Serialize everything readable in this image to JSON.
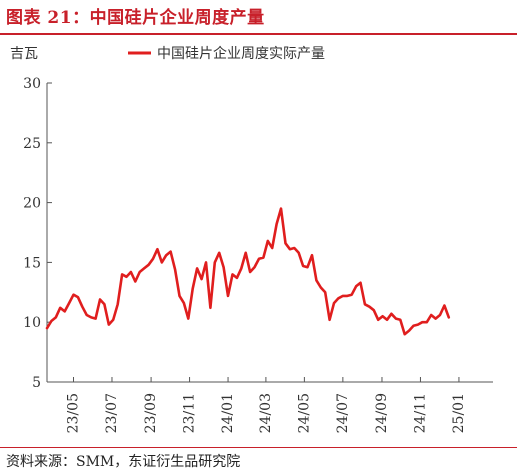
{
  "figure": {
    "title": "图表 21：中国硅片企业周度产量",
    "source": "资料来源：SMM，东证衍生品研究院"
  },
  "colors": {
    "accent": "#c8202a",
    "series": "#e01e1e",
    "axis": "#555555"
  },
  "chart_data": {
    "type": "line",
    "ylabel": "吉瓦",
    "ylim": [
      5,
      30
    ],
    "yticks": [
      5,
      10,
      15,
      20,
      25,
      30
    ],
    "xlim": [
      "2023-03-20",
      "2025-02-24"
    ],
    "xticks": [
      "2023-05-01",
      "2023-07-01",
      "2023-09-01",
      "2023-11-01",
      "2024-01-01",
      "2024-03-01",
      "2024-05-01",
      "2024-07-01",
      "2024-09-01",
      "2024-11-01",
      "2025-01-01"
    ],
    "xtick_labels": [
      "23/05",
      "23/07",
      "23/09",
      "23/11",
      "24/01",
      "24/03",
      "24/05",
      "24/07",
      "24/09",
      "24/11",
      "25/01"
    ],
    "grid": false,
    "legend": "top",
    "series": [
      {
        "name": "中国硅片企业周度实际产量",
        "points": [
          [
            "2023-03-20",
            9.5
          ],
          [
            "2023-03-27",
            10.1
          ],
          [
            "2023-04-03",
            10.4
          ],
          [
            "2023-04-10",
            11.2
          ],
          [
            "2023-04-17",
            10.9
          ],
          [
            "2023-04-24",
            11.6
          ],
          [
            "2023-05-01",
            12.3
          ],
          [
            "2023-05-08",
            12.1
          ],
          [
            "2023-05-15",
            11.3
          ],
          [
            "2023-05-22",
            10.6
          ],
          [
            "2023-05-29",
            10.4
          ],
          [
            "2023-06-05",
            10.3
          ],
          [
            "2023-06-12",
            11.9
          ],
          [
            "2023-06-19",
            11.5
          ],
          [
            "2023-06-26",
            9.8
          ],
          [
            "2023-07-03",
            10.2
          ],
          [
            "2023-07-10",
            11.5
          ],
          [
            "2023-07-17",
            14.0
          ],
          [
            "2023-07-24",
            13.8
          ],
          [
            "2023-07-31",
            14.2
          ],
          [
            "2023-08-07",
            13.4
          ],
          [
            "2023-08-14",
            14.2
          ],
          [
            "2023-08-21",
            14.5
          ],
          [
            "2023-08-28",
            14.8
          ],
          [
            "2023-09-04",
            15.3
          ],
          [
            "2023-09-11",
            16.1
          ],
          [
            "2023-09-18",
            15.0
          ],
          [
            "2023-09-25",
            15.6
          ],
          [
            "2023-10-02",
            15.9
          ],
          [
            "2023-10-09",
            14.4
          ],
          [
            "2023-10-16",
            12.2
          ],
          [
            "2023-10-23",
            11.6
          ],
          [
            "2023-10-30",
            10.3
          ],
          [
            "2023-11-06",
            12.8
          ],
          [
            "2023-11-13",
            14.5
          ],
          [
            "2023-11-20",
            13.6
          ],
          [
            "2023-11-27",
            15.0
          ],
          [
            "2023-12-04",
            11.2
          ],
          [
            "2023-12-11",
            15.0
          ],
          [
            "2023-12-18",
            15.8
          ],
          [
            "2023-12-25",
            14.6
          ],
          [
            "2024-01-01",
            12.2
          ],
          [
            "2024-01-08",
            14.0
          ],
          [
            "2024-01-15",
            13.7
          ],
          [
            "2024-01-22",
            14.5
          ],
          [
            "2024-01-29",
            15.8
          ],
          [
            "2024-02-05",
            14.2
          ],
          [
            "2024-02-12",
            14.6
          ],
          [
            "2024-02-19",
            15.3
          ],
          [
            "2024-02-26",
            15.4
          ],
          [
            "2024-03-04",
            16.8
          ],
          [
            "2024-03-11",
            16.2
          ],
          [
            "2024-03-18",
            18.2
          ],
          [
            "2024-03-25",
            19.5
          ],
          [
            "2024-04-01",
            16.6
          ],
          [
            "2024-04-08",
            16.1
          ],
          [
            "2024-04-15",
            16.2
          ],
          [
            "2024-04-22",
            15.8
          ],
          [
            "2024-04-29",
            14.7
          ],
          [
            "2024-05-06",
            14.6
          ],
          [
            "2024-05-13",
            15.6
          ],
          [
            "2024-05-20",
            13.5
          ],
          [
            "2024-05-27",
            12.9
          ],
          [
            "2024-06-03",
            12.5
          ],
          [
            "2024-06-10",
            10.2
          ],
          [
            "2024-06-17",
            11.6
          ],
          [
            "2024-06-24",
            12.0
          ],
          [
            "2024-07-01",
            12.2
          ],
          [
            "2024-07-08",
            12.2
          ],
          [
            "2024-07-15",
            12.3
          ],
          [
            "2024-07-22",
            13.0
          ],
          [
            "2024-07-29",
            13.3
          ],
          [
            "2024-08-05",
            11.5
          ],
          [
            "2024-08-12",
            11.3
          ],
          [
            "2024-08-19",
            11.0
          ],
          [
            "2024-08-26",
            10.2
          ],
          [
            "2024-09-02",
            10.5
          ],
          [
            "2024-09-09",
            10.2
          ],
          [
            "2024-09-16",
            10.7
          ],
          [
            "2024-09-23",
            10.3
          ],
          [
            "2024-09-30",
            10.2
          ],
          [
            "2024-10-07",
            9.0
          ],
          [
            "2024-10-14",
            9.3
          ],
          [
            "2024-10-21",
            9.7
          ],
          [
            "2024-10-28",
            9.8
          ],
          [
            "2024-11-04",
            10.0
          ],
          [
            "2024-11-11",
            10.0
          ],
          [
            "2024-11-18",
            10.6
          ],
          [
            "2024-11-25",
            10.3
          ],
          [
            "2024-12-02",
            10.6
          ],
          [
            "2024-12-09",
            11.4
          ],
          [
            "2024-12-16",
            10.4
          ]
        ]
      }
    ]
  }
}
